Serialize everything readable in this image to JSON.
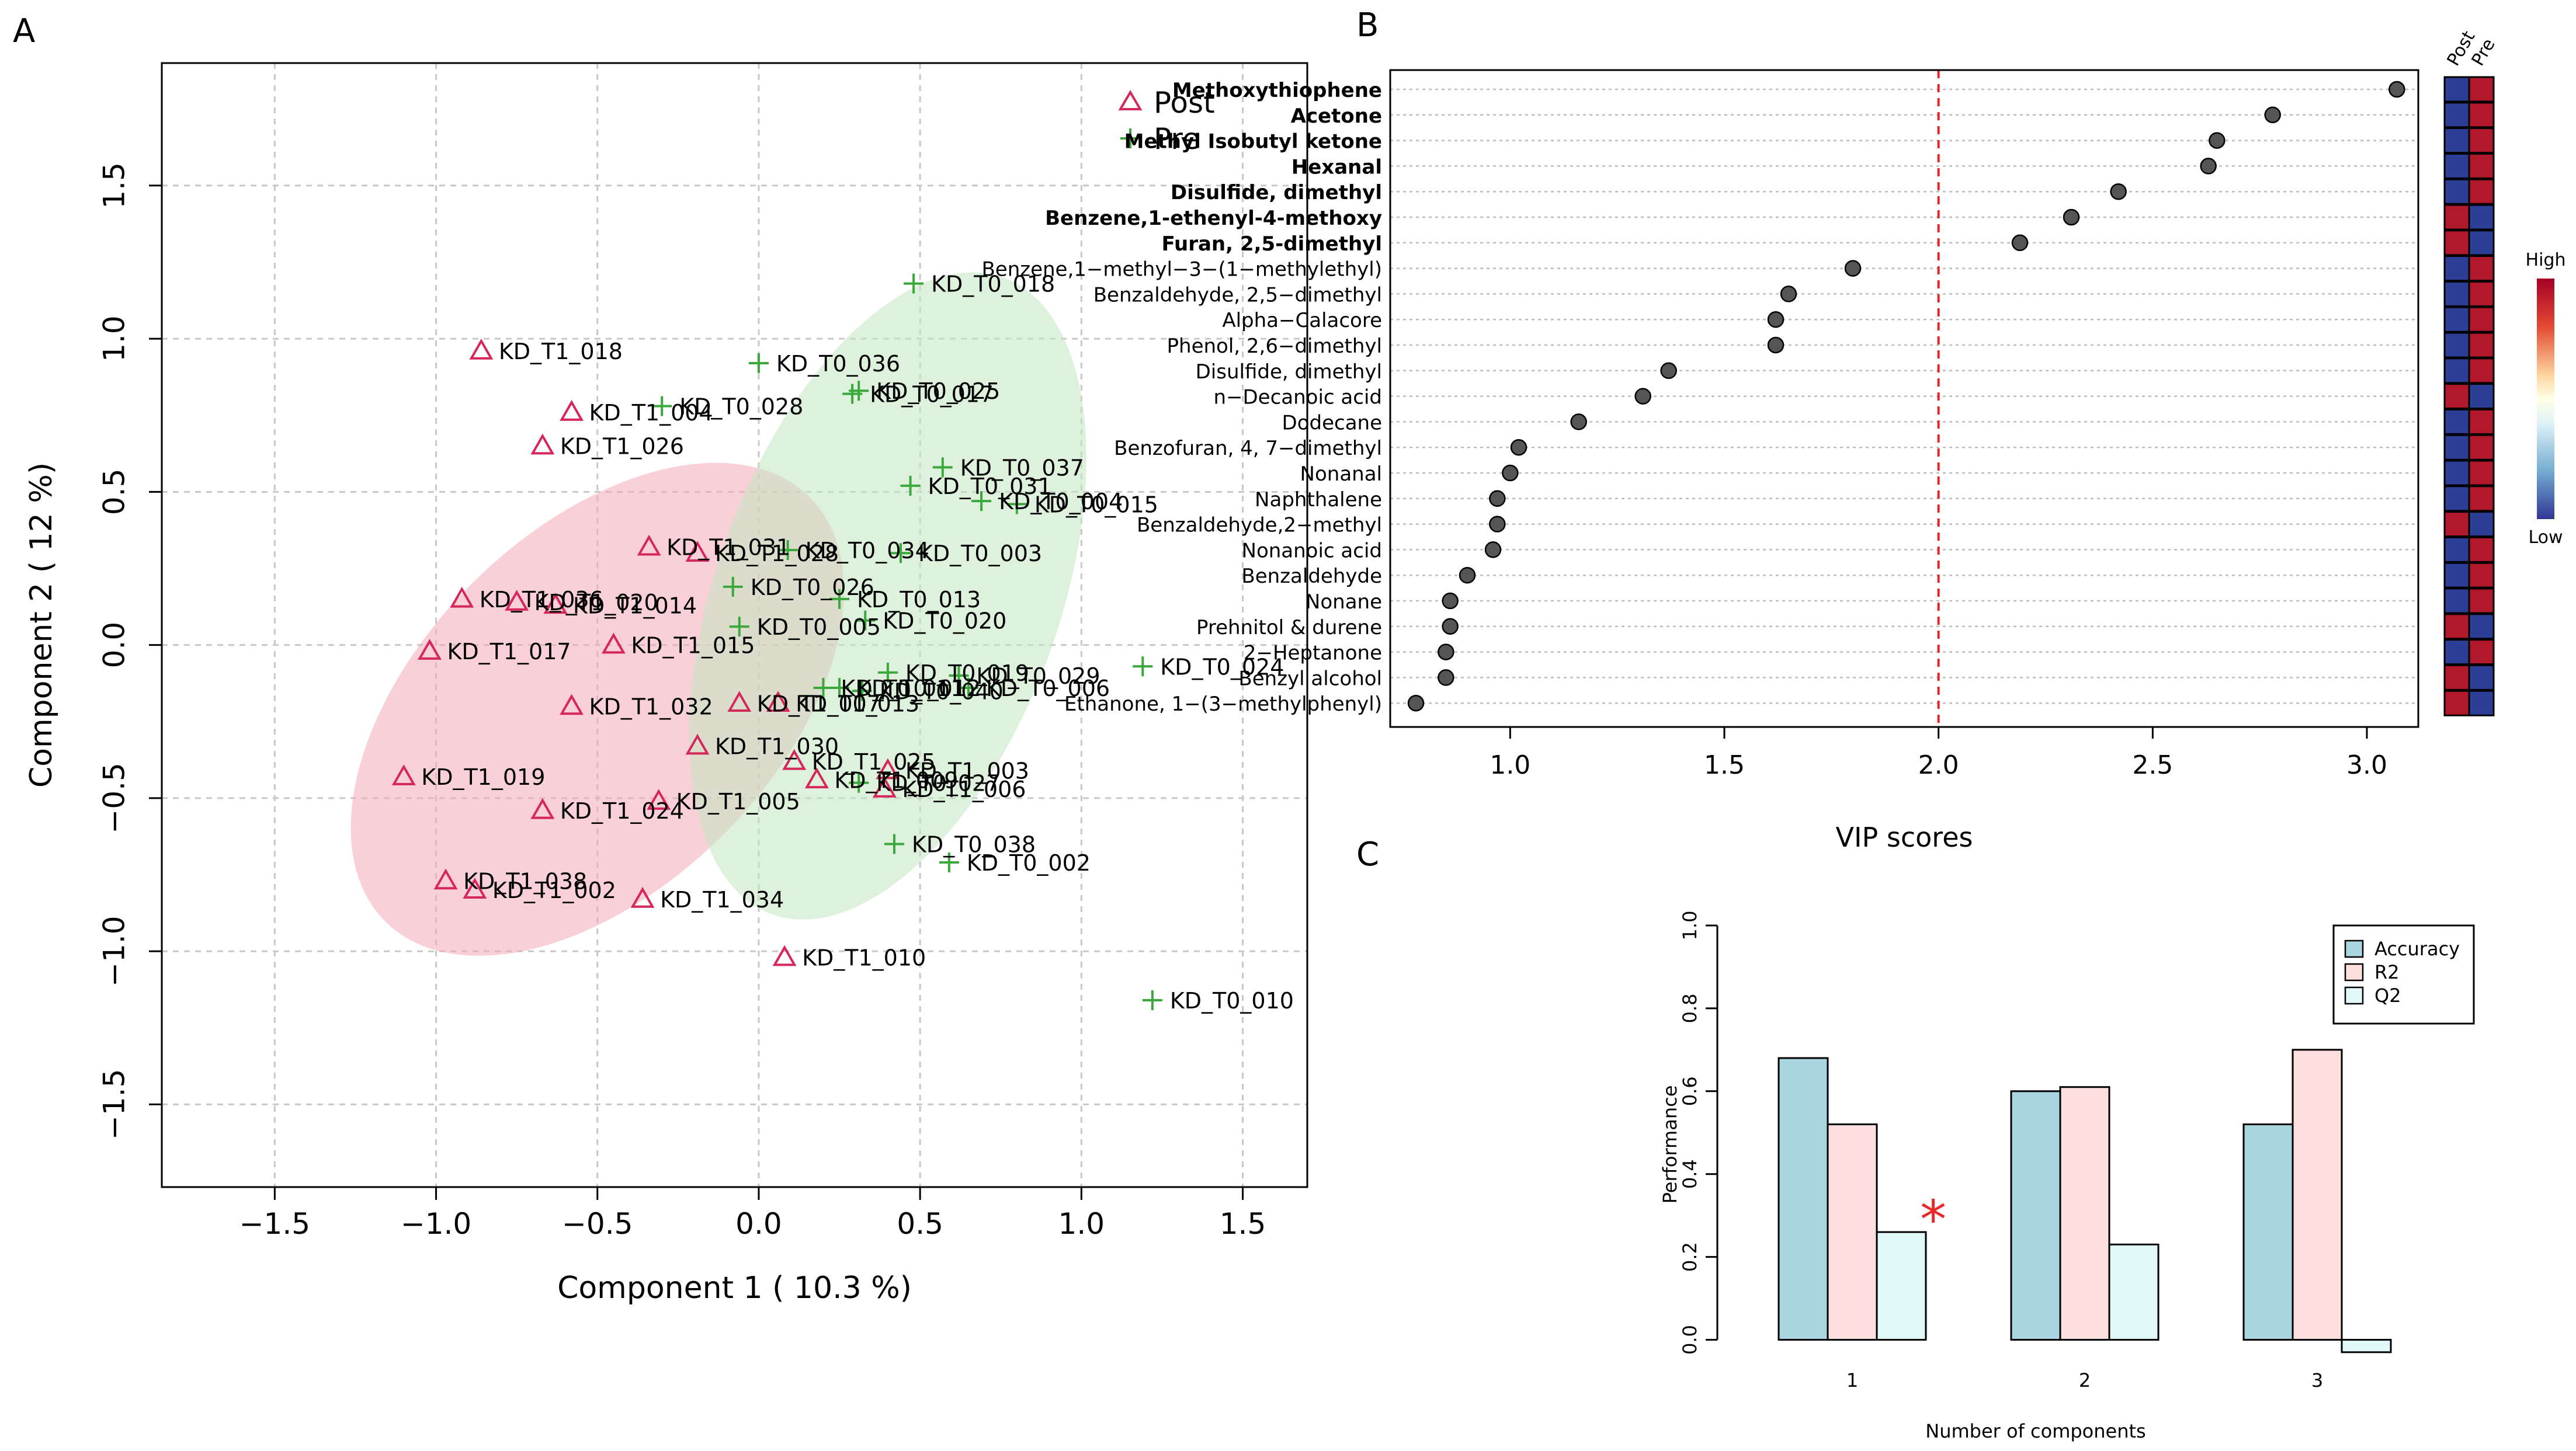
{
  "panel_labels": {
    "a": "A",
    "b": "B",
    "c": "C"
  },
  "chart_data": [
    {
      "type": "scatter",
      "panel": "A",
      "xlabel": "Component 1 ( 10.3 %)",
      "ylabel": "Component 2 ( 12 %)",
      "xlim": [
        -1.85,
        1.7
      ],
      "ylim": [
        -1.77,
        1.9
      ],
      "xticks": [
        -1.5,
        -1.0,
        -0.5,
        0.0,
        0.5,
        1.0,
        1.5
      ],
      "xtick_labels": [
        "−1.5",
        "−1.0",
        "−0.5",
        "0.0",
        "0.5",
        "1.0",
        "1.5"
      ],
      "yticks": [
        -1.5,
        -1.0,
        -0.5,
        0.0,
        0.5,
        1.0,
        1.5
      ],
      "ytick_labels": [
        "−1.5",
        "−1.0",
        "−0.5",
        "0.0",
        "0.5",
        "1.0",
        "1.5"
      ],
      "grid": true,
      "legend": [
        {
          "label": "Post",
          "symbol": "triangle",
          "color": "#d6275a"
        },
        {
          "label": "Pre",
          "symbol": "plus",
          "color": "#3aa83a"
        }
      ],
      "ellipses": [
        {
          "group": "Post",
          "center": [
            -0.5,
            -0.21
          ],
          "semi_axes": [
            0.93,
            0.58
          ],
          "rotation_deg": 45,
          "fill": "#f4a9b8"
        },
        {
          "group": "Pre",
          "center": [
            0.4,
            0.16
          ],
          "semi_axes": [
            1.05,
            0.56
          ],
          "rotation_deg": 70,
          "fill": "#c3e6c1"
        }
      ],
      "series": [
        {
          "name": "Post",
          "symbol": "triangle",
          "color": "#d6275a",
          "points": [
            {
              "label": "KD_T1_018",
              "x": -0.86,
              "y": 0.96
            },
            {
              "label": "KD_T1_004",
              "x": -0.58,
              "y": 0.76
            },
            {
              "label": "KD_T1_026",
              "x": -0.67,
              "y": 0.65
            },
            {
              "label": "KD_T1_031",
              "x": -0.34,
              "y": 0.32
            },
            {
              "label": "KD_T1_028",
              "x": -0.19,
              "y": 0.3
            },
            {
              "label": "KD_T1_036",
              "x": -0.92,
              "y": 0.15
            },
            {
              "label": "KD_T1_020",
              "x": -0.75,
              "y": 0.14
            },
            {
              "label": "KD_T1_014",
              "x": -0.63,
              "y": 0.13
            },
            {
              "label": "KD_T1_017",
              "x": -1.02,
              "y": -0.02
            },
            {
              "label": "KD_T1_015",
              "x": -0.45,
              "y": 0.0
            },
            {
              "label": "KD_T1_032",
              "x": -0.58,
              "y": -0.2
            },
            {
              "label": "KD_T1_007",
              "x": -0.06,
              "y": -0.19
            },
            {
              "label": "KD_T1_013",
              "x": 0.06,
              "y": -0.19
            },
            {
              "label": "KD_T1_030",
              "x": -0.19,
              "y": -0.33
            },
            {
              "label": "KD_T1_025",
              "x": 0.11,
              "y": -0.38
            },
            {
              "label": "KD_T1_003",
              "x": 0.4,
              "y": -0.41
            },
            {
              "label": "KD_T1_009",
              "x": 0.18,
              "y": -0.44
            },
            {
              "label": "KD_T1_006",
              "x": 0.39,
              "y": -0.47
            },
            {
              "label": "KD_T1_019",
              "x": -1.1,
              "y": -0.43
            },
            {
              "label": "KD_T1_024",
              "x": -0.67,
              "y": -0.54
            },
            {
              "label": "KD_T1_005",
              "x": -0.31,
              "y": -0.51
            },
            {
              "label": "KD_T1_038",
              "x": -0.97,
              "y": -0.77
            },
            {
              "label": "KD_T1_002",
              "x": -0.88,
              "y": -0.8
            },
            {
              "label": "KD_T1_034",
              "x": -0.36,
              "y": -0.83
            },
            {
              "label": "KD_T1_010",
              "x": 0.08,
              "y": -1.02
            }
          ]
        },
        {
          "name": "Pre",
          "symbol": "plus",
          "color": "#3aa83a",
          "points": [
            {
              "label": "KD_T0_018",
              "x": 0.48,
              "y": 1.18
            },
            {
              "label": "KD_T0_036",
              "x": 0.0,
              "y": 0.92
            },
            {
              "label": "KD_T0_025",
              "x": 0.31,
              "y": 0.83
            },
            {
              "label": "KD_T0_017",
              "x": 0.29,
              "y": 0.82
            },
            {
              "label": "KD_T0_028",
              "x": -0.3,
              "y": 0.78
            },
            {
              "label": "KD_T0_037",
              "x": 0.57,
              "y": 0.58
            },
            {
              "label": "KD_T0_031",
              "x": 0.47,
              "y": 0.52
            },
            {
              "label": "KD_T0_004",
              "x": 0.69,
              "y": 0.47
            },
            {
              "label": "KD_T0_015",
              "x": 0.8,
              "y": 0.46
            },
            {
              "label": "KD_T0_034",
              "x": 0.09,
              "y": 0.31
            },
            {
              "label": "KD_T0_003",
              "x": 0.44,
              "y": 0.3
            },
            {
              "label": "KD_T0_026",
              "x": -0.08,
              "y": 0.19
            },
            {
              "label": "KD_T0_013",
              "x": 0.25,
              "y": 0.15
            },
            {
              "label": "KD_T0_020",
              "x": 0.33,
              "y": 0.08
            },
            {
              "label": "KD_T0_005",
              "x": -0.06,
              "y": 0.06
            },
            {
              "label": "KD_T0_024",
              "x": 1.19,
              "y": -0.07
            },
            {
              "label": "KD_T0_019",
              "x": 0.4,
              "y": -0.09
            },
            {
              "label": "KD_T0_029",
              "x": 0.62,
              "y": -0.1
            },
            {
              "label": "KD_T0_011",
              "x": 0.2,
              "y": -0.14
            },
            {
              "label": "KD_T0_012",
              "x": 0.25,
              "y": -0.14
            },
            {
              "label": "KD_T0_040",
              "x": 0.32,
              "y": -0.15
            },
            {
              "label": "KD_T0_006",
              "x": 0.65,
              "y": -0.14
            },
            {
              "label": "KD_T0_027",
              "x": 0.31,
              "y": -0.45
            },
            {
              "label": "KD_T0_038",
              "x": 0.42,
              "y": -0.65
            },
            {
              "label": "KD_T0_002",
              "x": 0.59,
              "y": -0.71
            },
            {
              "label": "KD_T0_010",
              "x": 1.22,
              "y": -1.16
            }
          ]
        }
      ]
    },
    {
      "type": "scatter",
      "panel": "B",
      "xlabel": "VIP scores",
      "xlim": [
        0.72,
        3.12
      ],
      "xticks": [
        1.0,
        1.5,
        2.0,
        2.5,
        3.0
      ],
      "xtick_labels": [
        "1.0",
        "1.5",
        "2.0",
        "2.5",
        "3.0"
      ],
      "threshold": 2.0,
      "categories": [
        "Methoxythiophene",
        "Acetone",
        "Methyl Isobutyl ketone",
        "Hexanal",
        "Disulfide, dimethyl",
        "Benzene,1-ethenyl-4-methoxy",
        "Furan, 2,5-dimethyl",
        "Benzene,1−methyl−3−(1−methylethyl)",
        "Benzaldehyde, 2,5−dimethyl",
        "Alpha−Calacore",
        "Phenol, 2,6−dimethyl",
        "Disulfide, dimethyl",
        "n−Decanoic acid",
        "Dodecane",
        "Benzofuran, 4, 7−dimethyl",
        "Nonanal",
        "Naphthalene",
        "Benzaldehyde,2−methyl",
        "Nonanoic acid",
        "Benzaldehyde",
        "Nonane",
        "Prehnitol & durene",
        "2−Heptanone",
        "Benzyl alcohol",
        "Ethanone, 1−(3−methylphenyl)"
      ],
      "bold_count": 7,
      "values": [
        3.07,
        2.78,
        2.65,
        2.63,
        2.42,
        2.31,
        2.19,
        1.8,
        1.65,
        1.62,
        1.62,
        1.37,
        1.31,
        1.16,
        1.02,
        1.0,
        0.97,
        0.97,
        0.96,
        0.9,
        0.86,
        0.86,
        0.85,
        0.85,
        0.78
      ],
      "heatmap": {
        "columns": [
          "Post",
          "Pre"
        ],
        "cells": [
          [
            "low",
            "high"
          ],
          [
            "low",
            "high"
          ],
          [
            "low",
            "high"
          ],
          [
            "low",
            "high"
          ],
          [
            "low",
            "high"
          ],
          [
            "high",
            "low"
          ],
          [
            "high",
            "low"
          ],
          [
            "low",
            "high"
          ],
          [
            "low",
            "high"
          ],
          [
            "low",
            "high"
          ],
          [
            "low",
            "high"
          ],
          [
            "low",
            "high"
          ],
          [
            "high",
            "low"
          ],
          [
            "low",
            "high"
          ],
          [
            "low",
            "high"
          ],
          [
            "low",
            "high"
          ],
          [
            "low",
            "high"
          ],
          [
            "high",
            "low"
          ],
          [
            "low",
            "high"
          ],
          [
            "low",
            "high"
          ],
          [
            "low",
            "high"
          ],
          [
            "high",
            "low"
          ],
          [
            "low",
            "high"
          ],
          [
            "high",
            "low"
          ],
          [
            "high",
            "low"
          ]
        ],
        "colors": {
          "high": "#b2182b",
          "low": "#2c3e96"
        },
        "colorbar": {
          "high_label": "High",
          "low_label": "Low"
        }
      }
    },
    {
      "type": "bar",
      "panel": "C",
      "xlabel": "Number of components",
      "ylabel": "Performance",
      "ylim": [
        -0.05,
        1.0
      ],
      "yticks": [
        0.0,
        0.2,
        0.4,
        0.6,
        0.8,
        1.0
      ],
      "ytick_labels": [
        "0.0",
        "0.2",
        "0.4",
        "0.6",
        "0.8",
        "1.0"
      ],
      "categories": [
        "1",
        "2",
        "3"
      ],
      "series": [
        {
          "name": "Accuracy",
          "color": "#a9d5e0",
          "values": [
            0.68,
            0.6,
            0.52
          ]
        },
        {
          "name": "R2",
          "color": "#fde0dd",
          "values": [
            0.52,
            0.61,
            0.7
          ]
        },
        {
          "name": "Q2",
          "color": "#e0f8f8",
          "values": [
            0.26,
            0.23,
            -0.03
          ]
        }
      ],
      "marker": {
        "symbol": "*",
        "category": "1",
        "series": "Q2",
        "color": "#e8282b"
      }
    }
  ]
}
